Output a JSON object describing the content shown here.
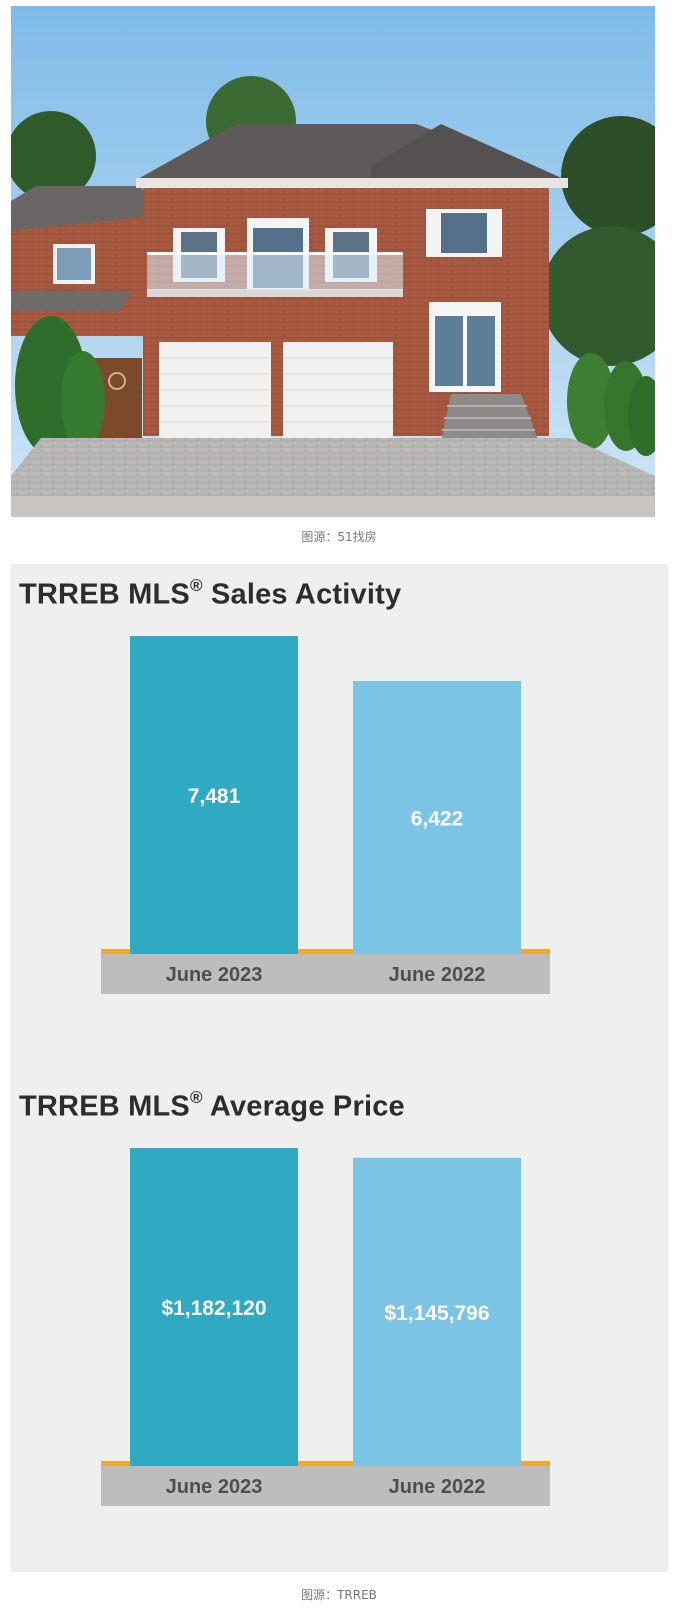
{
  "photo": {
    "caption": "图源：51找房",
    "colors": {
      "sky": "#9ccdee",
      "brick": "#a85a43",
      "roof": "#5e5a59",
      "door": "#ffffff",
      "lawn": "#5e8a3a"
    }
  },
  "charts_caption": "图源：TRREB",
  "chart_data": [
    {
      "type": "bar",
      "title_main": "TRREB MLS",
      "title_sup": "®",
      "title_rest": " Sales Activity",
      "categories": [
        "June 2023",
        "June 2022"
      ],
      "values": [
        7481,
        6422
      ],
      "labels": [
        "7,481",
        "6,422"
      ],
      "colors": [
        "#30a9c3",
        "#7cc4e4"
      ],
      "axis_color": "#f0a830",
      "axis_band_color": "#bdbdbd",
      "ylim": [
        0,
        7481
      ]
    },
    {
      "type": "bar",
      "title_main": "TRREB MLS",
      "title_sup": "®",
      "title_rest": " Average Price",
      "categories": [
        "June 2023",
        "June 2022"
      ],
      "values": [
        1182120,
        1145796
      ],
      "labels": [
        "$1,182,120",
        "$1,145,796"
      ],
      "colors": [
        "#30a9c3",
        "#7cc4e4"
      ],
      "axis_color": "#f0a830",
      "axis_band_color": "#bdbdbd",
      "ylim": [
        0,
        1182120
      ]
    }
  ]
}
